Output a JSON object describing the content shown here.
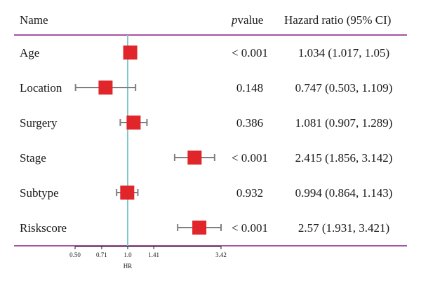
{
  "header": {
    "name": "Name",
    "pvalue_italic": "p",
    "pvalue_rest": "value",
    "hr_ci": "Hazard ratio (95% CI)"
  },
  "colors": {
    "rule": "#9b3a97",
    "refline": "#7ec9c9",
    "marker": "#e0262a",
    "whisker": "#7f7f7f",
    "axis": "#1a1a1a"
  },
  "chart_data": {
    "type": "forest",
    "xlabel": "HR",
    "xscale": "log",
    "xlim": [
      0.5,
      3.42
    ],
    "xticks": [
      0.5,
      0.71,
      1.0,
      1.41,
      3.42
    ],
    "xtick_labels": [
      "0.50",
      "0.71",
      "1.0",
      "1.41",
      "3.42"
    ],
    "reference": 1.0,
    "rows": [
      {
        "name": "Age",
        "p": "< 0.001",
        "hr": 1.034,
        "lo": 1.017,
        "hi": 1.05,
        "hr_text": "1.034 (1.017, 1.05)"
      },
      {
        "name": "Location",
        "p": "0.148",
        "hr": 0.747,
        "lo": 0.503,
        "hi": 1.109,
        "hr_text": "0.747 (0.503, 1.109)"
      },
      {
        "name": "Surgery",
        "p": "0.386",
        "hr": 1.081,
        "lo": 0.907,
        "hi": 1.289,
        "hr_text": "1.081 (0.907, 1.289)"
      },
      {
        "name": "Stage",
        "p": "< 0.001",
        "hr": 2.415,
        "lo": 1.856,
        "hi": 3.142,
        "hr_text": "2.415 (1.856, 3.142)"
      },
      {
        "name": "Subtype",
        "p": "0.932",
        "hr": 0.994,
        "lo": 0.864,
        "hi": 1.143,
        "hr_text": "0.994 (0.864, 1.143)"
      },
      {
        "name": "Riskscore",
        "p": "< 0.001",
        "hr": 2.57,
        "lo": 1.931,
        "hi": 3.421,
        "hr_text": "2.57 (1.931, 3.421)"
      }
    ]
  }
}
